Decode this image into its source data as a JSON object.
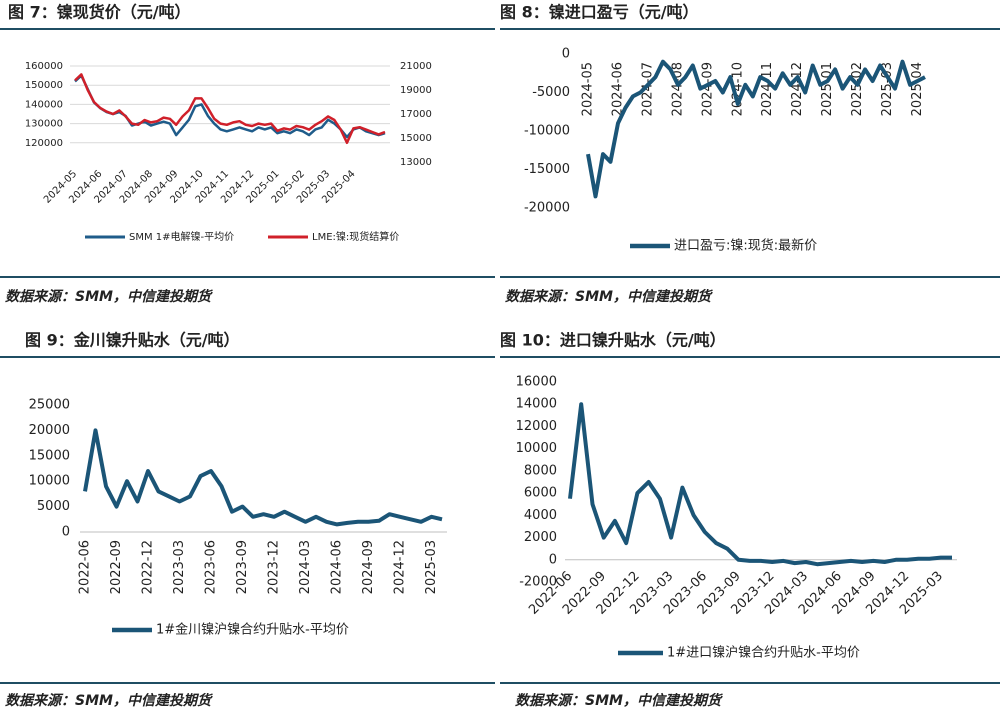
{
  "chart_data": [
    {
      "type": "line",
      "title": "图 7：镍现货价（元/吨）",
      "source": "数据来源：SMM，中信建投期货",
      "categories": [
        "2024-05",
        null,
        null,
        null,
        "2024-06",
        null,
        null,
        null,
        "2024-07",
        null,
        null,
        null,
        "2024-08",
        null,
        null,
        null,
        "2024-09",
        null,
        null,
        null,
        "2024-10",
        null,
        null,
        null,
        "2024-11",
        null,
        null,
        null,
        "2024-12",
        null,
        null,
        null,
        "2025-01",
        null,
        null,
        null,
        "2025-02",
        null,
        null,
        null,
        "2025-03",
        null,
        null,
        null,
        "2025-04",
        null,
        null,
        null,
        null,
        null
      ],
      "series": [
        {
          "name": "SMM 1#电解镍-平均价",
          "color": "#1f5c8a",
          "values": [
            152000,
            155000,
            148000,
            141000,
            138000,
            136000,
            135000,
            136000,
            134000,
            129000,
            130000,
            131000,
            129000,
            130000,
            131000,
            130000,
            124000,
            128000,
            132000,
            139000,
            140000,
            134000,
            130000,
            127000,
            126000,
            127000,
            128000,
            127000,
            126000,
            128000,
            127000,
            128000,
            125000,
            126000,
            125000,
            127000,
            126000,
            124000,
            127000,
            128000,
            132000,
            130000,
            127000,
            123000,
            127000,
            128000,
            126000,
            125000,
            124000,
            125000
          ]
        },
        {
          "name": "LME:镍:现货结算价",
          "color": "#d0202a",
          "axis": "y2",
          "values": [
            19800,
            20300,
            19000,
            18000,
            17500,
            17200,
            17000,
            17300,
            16800,
            16200,
            16100,
            16500,
            16300,
            16400,
            16700,
            16600,
            16100,
            16800,
            17300,
            18300,
            18300,
            17500,
            16600,
            16200,
            16100,
            16300,
            16400,
            16100,
            16000,
            16200,
            16100,
            16200,
            15600,
            15800,
            15700,
            16000,
            15900,
            15700,
            16100,
            16400,
            16800,
            16500,
            15700,
            14600,
            15800,
            15900,
            15700,
            15500,
            15300,
            15500
          ]
        }
      ],
      "ylim": [
        110000,
        160000
      ],
      "yticks": [
        120000,
        130000,
        140000,
        150000,
        160000
      ],
      "y2lim": [
        13000,
        21000
      ],
      "y2ticks": [
        13000,
        15000,
        17000,
        19000,
        21000
      ],
      "grid": true
    },
    {
      "type": "line",
      "title": "图 8：镍进口盈亏（元/吨）",
      "source": "数据来源：SMM，中信建投期货",
      "categories": [
        "2024-05",
        null,
        null,
        null,
        "2024-06",
        null,
        null,
        null,
        "2024-07",
        null,
        null,
        null,
        "2024-08",
        null,
        null,
        null,
        "2024-09",
        null,
        null,
        null,
        "2024-10",
        null,
        null,
        null,
        "2024-11",
        null,
        null,
        null,
        "2024-12",
        null,
        null,
        null,
        "2025-01",
        null,
        null,
        null,
        "2025-02",
        null,
        null,
        null,
        "2025-03",
        null,
        null,
        null,
        "2025-04",
        null
      ],
      "series": [
        {
          "name": "进口盈亏:镍:现货:最新价",
          "color": "#1b5577",
          "values": [
            -13000,
            -18500,
            -13000,
            -14000,
            -9000,
            -7000,
            -5500,
            -5000,
            -4000,
            -3000,
            -1000,
            -2000,
            -4000,
            -3000,
            -1500,
            -4500,
            -4000,
            -3500,
            -5000,
            -3000,
            -6500,
            -4000,
            -5500,
            -3000,
            -3500,
            -4500,
            -2500,
            -4000,
            -3000,
            -5000,
            -1500,
            -4000,
            -3500,
            -2000,
            -4500,
            -3000,
            -4000,
            -2000,
            -3500,
            -1500,
            -3000,
            -4500,
            -1000,
            -4000,
            -3500,
            -3000
          ]
        }
      ],
      "ylim": [
        -20000,
        0
      ],
      "yticks": [
        -20000,
        -15000,
        -10000,
        -5000,
        0
      ],
      "grid": false
    },
    {
      "type": "line",
      "title": "图 9：金川镍升贴水（元/吨）",
      "source": "数据来源：SMM，中信建投期货",
      "categories": [
        "2022-06",
        null,
        null,
        "2022-09",
        null,
        null,
        "2022-12",
        null,
        null,
        "2023-03",
        null,
        null,
        "2023-06",
        null,
        null,
        "2023-09",
        null,
        null,
        "2023-12",
        null,
        null,
        "2024-03",
        null,
        null,
        "2024-06",
        null,
        null,
        "2024-09",
        null,
        null,
        "2024-12",
        null,
        null,
        "2025-03",
        null
      ],
      "series": [
        {
          "name": "1#金川镍沪镍合约升贴水-平均价",
          "color": "#1b5577",
          "values": [
            8000,
            20000,
            9000,
            5000,
            10000,
            6000,
            12000,
            8000,
            7000,
            6000,
            7000,
            11000,
            12000,
            9000,
            4000,
            5000,
            3000,
            3500,
            3000,
            4000,
            3000,
            2000,
            3000,
            2000,
            1500,
            1800,
            2000,
            2000,
            2200,
            3500,
            3000,
            2500,
            2000,
            3000,
            2500
          ]
        }
      ],
      "ylim": [
        0,
        25000
      ],
      "yticks": [
        0,
        5000,
        10000,
        15000,
        20000,
        25000
      ],
      "grid": false
    },
    {
      "type": "line",
      "title": "图 10：进口镍升贴水（元/吨）",
      "source": "数据来源：SMM，中信建投期货",
      "categories": [
        "2022-06",
        null,
        null,
        "2022-09",
        null,
        null,
        "2022-12",
        null,
        null,
        "2023-03",
        null,
        null,
        "2023-06",
        null,
        null,
        "2023-09",
        null,
        null,
        "2023-12",
        null,
        null,
        "2024-03",
        null,
        null,
        "2024-06",
        null,
        null,
        "2024-09",
        null,
        null,
        "2024-12",
        null,
        null,
        "2025-03",
        null
      ],
      "series": [
        {
          "name": "1#进口镍沪镍合约升贴水-平均价",
          "color": "#1b5577",
          "values": [
            5500,
            14000,
            5000,
            2000,
            3500,
            1500,
            6000,
            7000,
            5500,
            2000,
            6500,
            4000,
            2500,
            1500,
            1000,
            0,
            -100,
            -100,
            -200,
            -100,
            -300,
            -200,
            -400,
            -300,
            -200,
            -100,
            -200,
            -100,
            -200,
            0,
            0,
            100,
            100,
            200,
            200
          ]
        }
      ],
      "ylim": [
        -2000,
        16000
      ],
      "yticks": [
        -2000,
        0,
        2000,
        4000,
        6000,
        8000,
        10000,
        12000,
        14000,
        16000
      ],
      "grid": false
    }
  ]
}
